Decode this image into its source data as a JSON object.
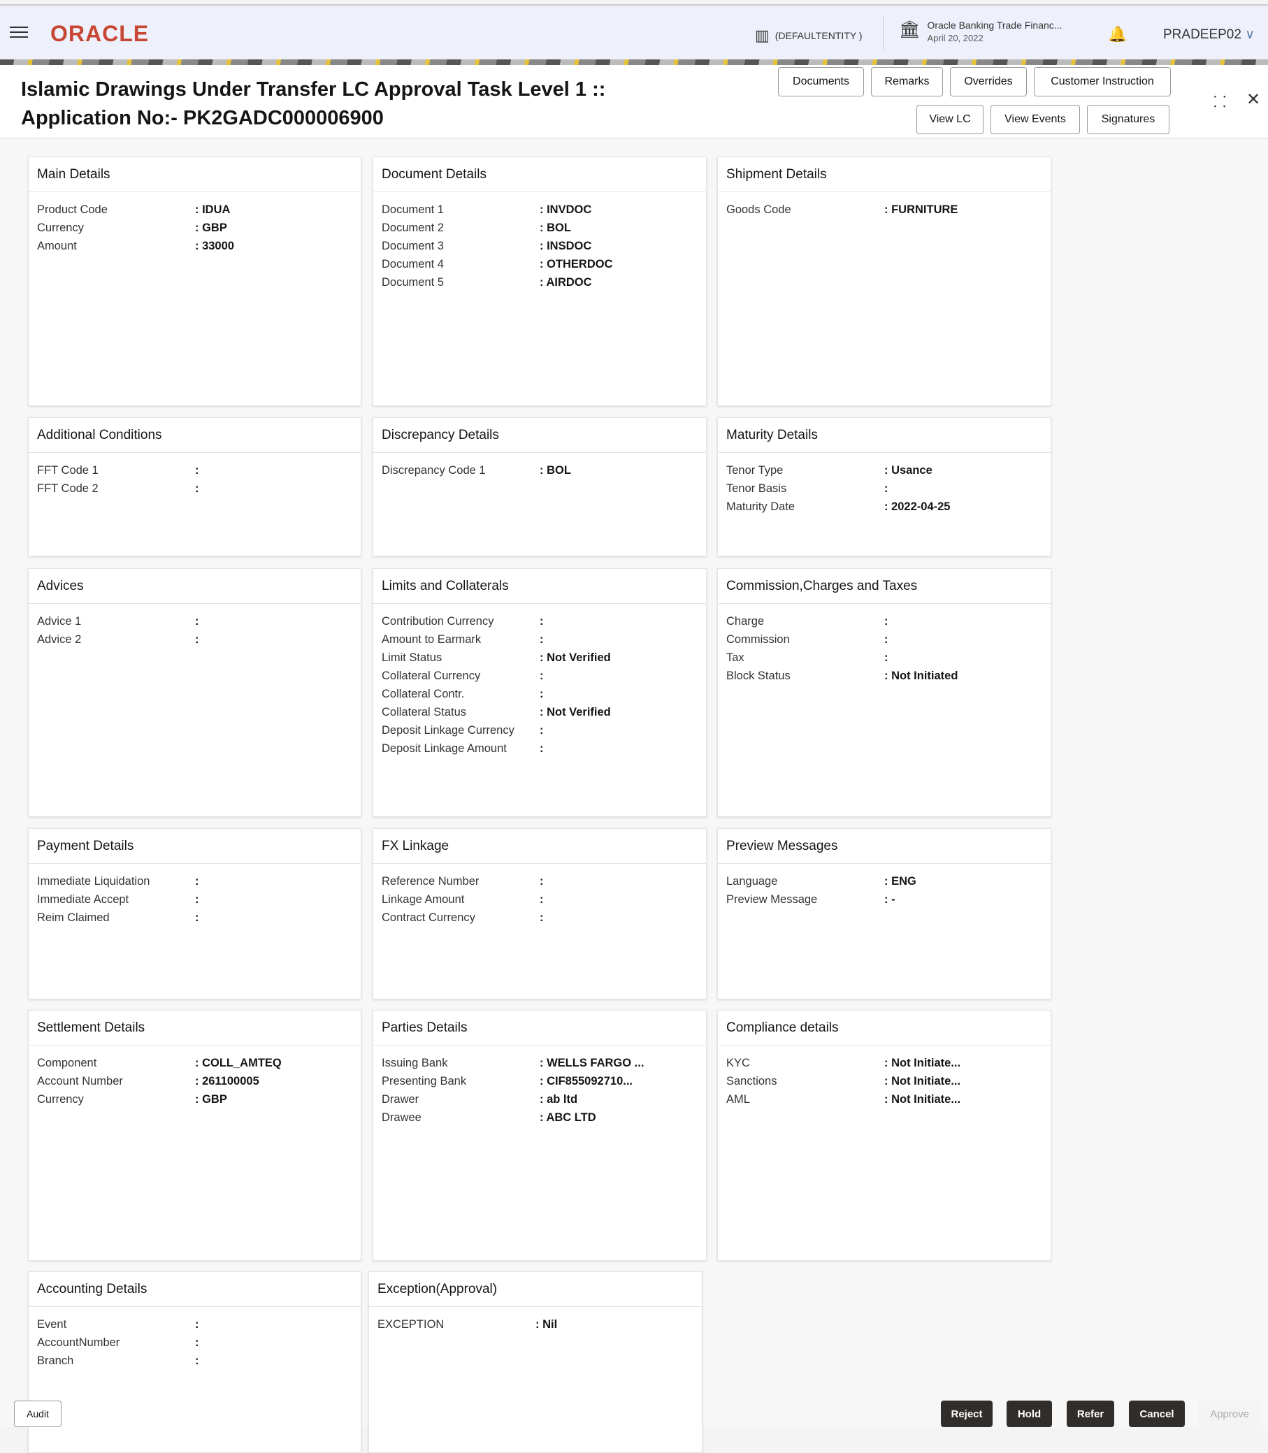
{
  "header": {
    "logo": "ORACLE",
    "entity": "(DEFAULTENTITY )",
    "bank_name": "Oracle Banking Trade Financ...",
    "date": "April 20, 2022",
    "user": "PRADEEP02"
  },
  "title": {
    "line1": "Islamic Drawings Under Transfer LC Approval Task Level 1 ::",
    "line2": "Application No:- PK2GADC000006900"
  },
  "toolbar": {
    "documents": "Documents",
    "remarks": "Remarks",
    "overrides": "Overrides",
    "customer_instruction": "Customer Instruction",
    "view_lc": "View LC",
    "view_events": "View Events",
    "signatures": "Signatures"
  },
  "cards": [
    {
      "title": "Main Details",
      "rows": [
        [
          "Product Code",
          ": IDUA"
        ],
        [
          "Currency",
          ": GBP"
        ],
        [
          "Amount",
          ": 33000"
        ]
      ]
    },
    {
      "title": "Document Details",
      "rows": [
        [
          "Document 1",
          ": INVDOC"
        ],
        [
          "Document 2",
          ": BOL"
        ],
        [
          "Document 3",
          ": INSDOC"
        ],
        [
          "Document 4",
          ": OTHERDOC"
        ],
        [
          "Document 5",
          ": AIRDOC"
        ]
      ]
    },
    {
      "title": "Shipment Details",
      "rows": [
        [
          "Goods Code",
          ": FURNITURE"
        ]
      ]
    },
    {
      "title": "Additional Conditions",
      "rows": [
        [
          "FFT Code 1",
          ":"
        ],
        [
          "FFT Code 2",
          ":"
        ]
      ]
    },
    {
      "title": "Discrepancy Details",
      "rows": [
        [
          "Discrepancy Code 1",
          ": BOL"
        ]
      ]
    },
    {
      "title": "Maturity Details",
      "rows": [
        [
          "Tenor Type",
          ": Usance"
        ],
        [
          "Tenor Basis",
          ":"
        ],
        [
          "Maturity Date",
          ": 2022-04-25"
        ]
      ]
    },
    {
      "title": "Advices",
      "rows": [
        [
          "Advice 1",
          ":"
        ],
        [
          "Advice 2",
          ":"
        ]
      ]
    },
    {
      "title": "Limits and Collaterals",
      "rows": [
        [
          "Contribution Currency",
          ":"
        ],
        [
          "Amount to Earmark",
          ":"
        ],
        [
          "Limit Status",
          ": Not Verified"
        ],
        [
          "Collateral Currency",
          ":"
        ],
        [
          "Collateral Contr.",
          ":"
        ],
        [
          "Collateral Status",
          ": Not Verified"
        ],
        [
          "Deposit Linkage Currency",
          ":"
        ],
        [
          "Deposit Linkage Amount",
          ":"
        ]
      ]
    },
    {
      "title": "Commission,Charges and Taxes",
      "rows": [
        [
          "Charge",
          ":"
        ],
        [
          "Commission",
          ":"
        ],
        [
          "Tax",
          ":"
        ],
        [
          "Block Status",
          ": Not Initiated"
        ]
      ]
    },
    {
      "title": "Payment Details",
      "rows": [
        [
          "Immediate Liquidation",
          ":"
        ],
        [
          "Immediate Accept",
          ":"
        ],
        [
          "Reim Claimed",
          ":"
        ]
      ]
    },
    {
      "title": "FX Linkage",
      "rows": [
        [
          "Reference Number",
          ":"
        ],
        [
          "Linkage Amount",
          ":"
        ],
        [
          "Contract Currency",
          ":"
        ]
      ]
    },
    {
      "title": "Preview Messages",
      "rows": [
        [
          "Language",
          ": ENG"
        ],
        [
          "Preview Message",
          ": -"
        ]
      ]
    },
    {
      "title": "Settlement Details",
      "rows": [
        [
          "Component",
          ": COLL_AMTEQ"
        ],
        [
          "Account Number",
          ": 261100005"
        ],
        [
          "Currency",
          ": GBP"
        ]
      ]
    },
    {
      "title": "Parties Details",
      "rows": [
        [
          "Issuing Bank",
          ": WELLS FARGO ..."
        ],
        [
          "Presenting Bank",
          ": CIF855092710..."
        ],
        [
          "Drawer",
          ": ab ltd"
        ],
        [
          "Drawee",
          ": ABC LTD"
        ]
      ]
    },
    {
      "title": "Compliance details",
      "rows": [
        [
          "KYC",
          ": Not Initiate..."
        ],
        [
          "Sanctions",
          ": Not Initiate..."
        ],
        [
          "AML",
          ": Not Initiate..."
        ]
      ]
    },
    {
      "title": "Accounting Details",
      "rows": [
        [
          "Event",
          ":"
        ],
        [
          "AccountNumber",
          ":"
        ],
        [
          "Branch",
          ":"
        ]
      ]
    },
    {
      "title": "Exception(Approval)",
      "rows": [
        [
          "EXCEPTION",
          ": Nil"
        ]
      ]
    }
  ],
  "footer": {
    "audit": "Audit",
    "reject": "Reject",
    "hold": "Hold",
    "refer": "Refer",
    "cancel": "Cancel",
    "approve": "Approve"
  }
}
